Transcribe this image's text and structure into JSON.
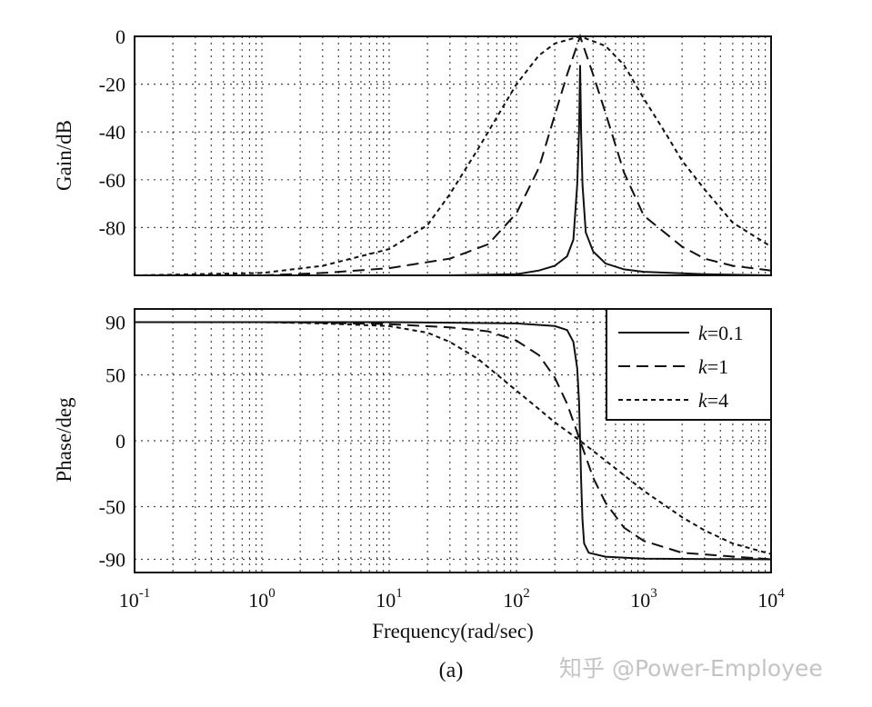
{
  "chart_data": [
    {
      "type": "line",
      "ylabel": "Gain/dB",
      "xscale": "log",
      "xlim": [
        0.1,
        10000
      ],
      "ylim": [
        -100,
        0
      ],
      "yticks": [
        0,
        -20,
        -40,
        -60,
        -80
      ],
      "ytick_labels": [
        "0",
        "-20",
        "-40",
        "-60",
        "-80"
      ],
      "grid": true,
      "series": [
        {
          "key": "k01",
          "style": "solid",
          "x": [
            0.1,
            1,
            3,
            10,
            30,
            100,
            150,
            200,
            250,
            280,
            300,
            310,
            316,
            322,
            330,
            350,
            400,
            500,
            700,
            1000,
            3000,
            10000
          ],
          "y": [
            -100,
            -100,
            -100,
            -100,
            -100,
            -99.5,
            -98,
            -96,
            -92,
            -85,
            -62,
            -40,
            -12,
            -40,
            -62,
            -82,
            -90,
            -95,
            -97.5,
            -98.5,
            -99.5,
            -100
          ]
        },
        {
          "key": "k1",
          "style": "dashed",
          "x": [
            0.1,
            1,
            3,
            10,
            30,
            60,
            100,
            150,
            200,
            250,
            316,
            400,
            500,
            700,
            1000,
            2000,
            3000,
            5000,
            10000
          ],
          "y": [
            -100,
            -100,
            -99,
            -97,
            -93,
            -87,
            -74,
            -55,
            -33,
            -16,
            0,
            -16,
            -32,
            -57,
            -75,
            -88,
            -93,
            -96,
            -98
          ]
        },
        {
          "key": "k4",
          "style": "dotted",
          "x": [
            0.1,
            1,
            3,
            10,
            20,
            30,
            50,
            100,
            150,
            200,
            316,
            500,
            700,
            1000,
            1500,
            2000,
            3000,
            5000,
            10000
          ],
          "y": [
            -100,
            -99,
            -96,
            -89,
            -79,
            -66,
            -47,
            -20,
            -8,
            -3,
            0,
            -4,
            -12,
            -26,
            -41,
            -52,
            -64,
            -78,
            -88
          ]
        }
      ]
    },
    {
      "type": "line",
      "xlabel": "Frequency(rad/sec)",
      "ylabel": "Phase/deg",
      "xscale": "log",
      "xlim": [
        0.1,
        10000
      ],
      "ylim": [
        -100,
        100
      ],
      "yticks": [
        90,
        50,
        0,
        -50,
        -90
      ],
      "ytick_labels": [
        "90",
        "50",
        "0",
        "-50",
        "-90"
      ],
      "xticks": [
        0.1,
        1,
        10,
        100,
        1000,
        10000
      ],
      "xtick_labels": [
        {
          "base": "10",
          "exp": "-1"
        },
        {
          "base": "10",
          "exp": "0"
        },
        {
          "base": "10",
          "exp": "1"
        },
        {
          "base": "10",
          "exp": "2"
        },
        {
          "base": "10",
          "exp": "3"
        },
        {
          "base": "10",
          "exp": "4"
        }
      ],
      "grid": true,
      "legend_position": "top-right",
      "legend": [
        {
          "key": "k01",
          "style": "solid",
          "k": "k",
          "value": "=0.1"
        },
        {
          "key": "k1",
          "style": "dashed",
          "k": "k",
          "value": "=1"
        },
        {
          "key": "k4",
          "style": "dotted",
          "k": "k",
          "value": "=4"
        }
      ],
      "series": [
        {
          "key": "k01",
          "style": "solid",
          "x": [
            0.1,
            1,
            10,
            100,
            200,
            250,
            280,
            300,
            310,
            316,
            322,
            330,
            340,
            370,
            500,
            1000,
            10000
          ],
          "y": [
            90,
            90,
            90,
            89,
            87,
            84,
            75,
            55,
            30,
            0,
            -30,
            -60,
            -78,
            -85,
            -88,
            -89.5,
            -90
          ]
        },
        {
          "key": "k1",
          "style": "dashed",
          "x": [
            0.1,
            1,
            3,
            10,
            30,
            60,
            100,
            150,
            200,
            250,
            316,
            400,
            500,
            700,
            1000,
            2000,
            10000
          ],
          "y": [
            90,
            90,
            89.5,
            88.5,
            86,
            83,
            76,
            65,
            48,
            28,
            0,
            -28,
            -47,
            -66,
            -76,
            -85,
            -90
          ]
        },
        {
          "key": "k4",
          "style": "dotted",
          "x": [
            0.1,
            1,
            3,
            10,
            20,
            30,
            50,
            100,
            150,
            200,
            316,
            500,
            1000,
            2000,
            3000,
            5000,
            10000
          ],
          "y": [
            90,
            90,
            89,
            87,
            82,
            75,
            62,
            38,
            24,
            14,
            0,
            -15,
            -38,
            -58,
            -68,
            -78,
            -86
          ]
        }
      ]
    }
  ],
  "caption": "(a)",
  "watermark": "知乎 @Power-Employee"
}
